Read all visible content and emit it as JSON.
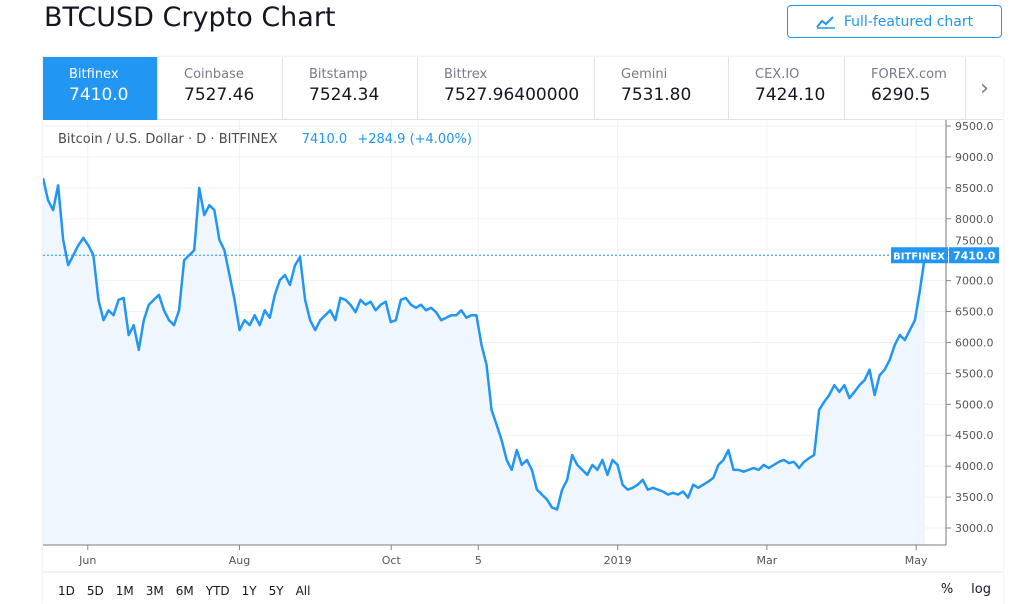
{
  "header": {
    "title": "BTCUSD Crypto Chart",
    "full_chart_button": "Full-featured chart"
  },
  "exchanges": [
    {
      "name": "Bitfinex",
      "price": "7410.0",
      "active": true
    },
    {
      "name": "Coinbase",
      "price": "7527.46"
    },
    {
      "name": "Bitstamp",
      "price": "7524.34"
    },
    {
      "name": "Bittrex",
      "price": "7527.96400000"
    },
    {
      "name": "Gemini",
      "price": "7531.80"
    },
    {
      "name": "CEX.IO",
      "price": "7424.10"
    },
    {
      "name": "FOREX.com",
      "price": "6290.5"
    }
  ],
  "legend": {
    "symbol": "Bitcoin / U.S. Dollar · D · BITFINEX",
    "last": "7410.0",
    "change": "+284.9 (+4.00%)"
  },
  "ranges": [
    "1D",
    "5D",
    "1M",
    "3M",
    "6M",
    "YTD",
    "1Y",
    "5Y",
    "All"
  ],
  "scale_options": [
    "%",
    "log"
  ],
  "chart_data": {
    "type": "area",
    "colors": {
      "line": "#2196f3",
      "fill": "#f0f6fe"
    },
    "ylim": [
      2800,
      9650
    ],
    "yticks": [
      9500,
      9000,
      8500,
      8000,
      7500,
      7000,
      6500,
      6000,
      5500,
      5000,
      4500,
      4000,
      3500,
      3000
    ],
    "ytick_labels": [
      "9500.0",
      "9000.0",
      "8500.0",
      "8000.0",
      "7500.0",
      "7000.0",
      "6500.0",
      "6000.0",
      "5500.0",
      "5000.0",
      "4500.0",
      "4000.0",
      "3500.0",
      "3000.0"
    ],
    "x_range_days": [
      0,
      363
    ],
    "xticks": [
      {
        "label": "Jun",
        "day": 18
      },
      {
        "label": "Aug",
        "day": 79
      },
      {
        "label": "Oct",
        "day": 140
      },
      {
        "label": "5",
        "day": 175
      },
      {
        "label": "2019",
        "day": 231
      },
      {
        "label": "Mar",
        "day": 291
      },
      {
        "label": "May",
        "day": 351
      }
    ],
    "last_price": 7410,
    "last_label": "7410.0",
    "tag": "BITFINEX",
    "values": [
      8660,
      8300,
      8140,
      8540,
      7660,
      7250,
      7410,
      7570,
      7690,
      7570,
      7410,
      6690,
      6360,
      6520,
      6440,
      6690,
      6720,
      6120,
      6280,
      5880,
      6360,
      6610,
      6690,
      6770,
      6520,
      6360,
      6280,
      6520,
      7330,
      7410,
      7490,
      8500,
      8060,
      8220,
      8140,
      7660,
      7490,
      7090,
      6690,
      6200,
      6360,
      6280,
      6440,
      6280,
      6520,
      6400,
      6770,
      7010,
      7090,
      6930,
      7250,
      7380,
      6690,
      6360,
      6200,
      6360,
      6440,
      6520,
      6360,
      6720,
      6690,
      6610,
      6490,
      6690,
      6610,
      6660,
      6520,
      6610,
      6660,
      6330,
      6360,
      6690,
      6720,
      6610,
      6560,
      6610,
      6520,
      6560,
      6490,
      6360,
      6400,
      6440,
      6440,
      6520,
      6400,
      6440,
      6440,
      5960,
      5640,
      4910,
      4670,
      4420,
      4100,
      3940,
      4260,
      4020,
      4100,
      3940,
      3620,
      3540,
      3460,
      3330,
      3300,
      3620,
      3780,
      4180,
      4020,
      3940,
      3860,
      4020,
      3940,
      4100,
      3860,
      4100,
      4020,
      3700,
      3620,
      3650,
      3700,
      3780,
      3620,
      3650,
      3620,
      3590,
      3540,
      3570,
      3540,
      3590,
      3490,
      3700,
      3650,
      3700,
      3750,
      3810,
      4020,
      4100,
      4260,
      3940,
      3940,
      3910,
      3940,
      3970,
      3940,
      4020,
      3970,
      4020,
      4070,
      4100,
      4050,
      4070,
      3970,
      4070,
      4130,
      4180,
      4910,
      5040,
      5150,
      5310,
      5200,
      5310,
      5100,
      5200,
      5310,
      5390,
      5560,
      5150,
      5470,
      5560,
      5720,
      5960,
      6120,
      6040,
      6200,
      6360,
      6850,
      7410
    ]
  }
}
